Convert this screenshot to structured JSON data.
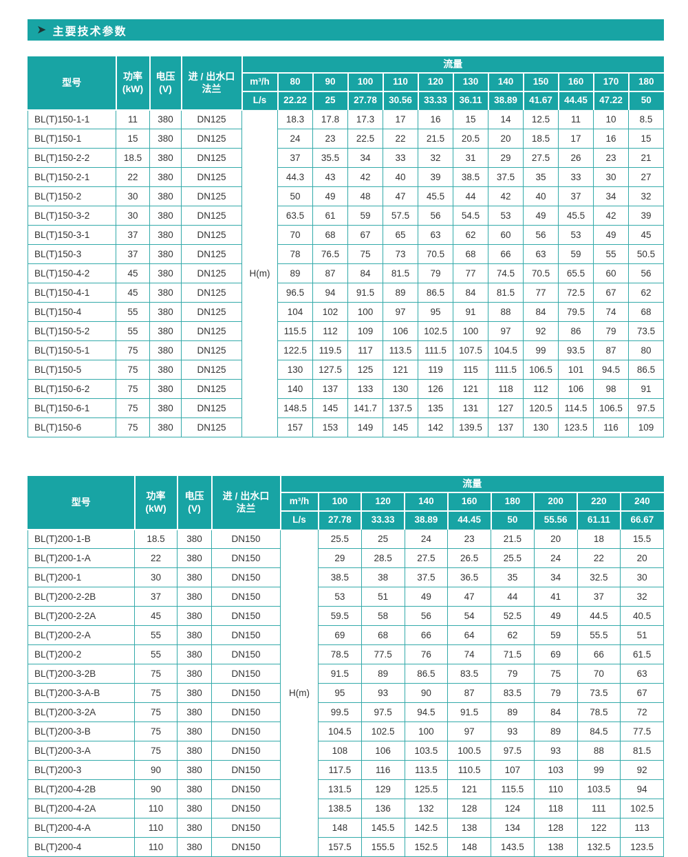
{
  "page": {
    "title": "主要技术参数",
    "arrow_icon": "➤"
  },
  "table1": {
    "headers": {
      "model": "型号",
      "power": "功率\n(kW)",
      "voltage": "电压\n(V)",
      "flange": "进 / 出水口\n法兰",
      "flow": "流量",
      "m3h": "m³/h",
      "ls": "L/s",
      "head": "H(m)"
    },
    "m3h_values": [
      "80",
      "90",
      "100",
      "110",
      "120",
      "130",
      "140",
      "150",
      "160",
      "170",
      "180"
    ],
    "ls_values": [
      "22.22",
      "25",
      "27.78",
      "30.56",
      "33.33",
      "36.11",
      "38.89",
      "41.67",
      "44.45",
      "47.22",
      "50"
    ],
    "rows": [
      {
        "model": "BL(T)150-1-1",
        "power": "11",
        "voltage": "380",
        "flange": "DN125",
        "values": [
          "18.3",
          "17.8",
          "17.3",
          "17",
          "16",
          "15",
          "14",
          "12.5",
          "11",
          "10",
          "8.5"
        ]
      },
      {
        "model": "BL(T)150-1",
        "power": "15",
        "voltage": "380",
        "flange": "DN125",
        "values": [
          "24",
          "23",
          "22.5",
          "22",
          "21.5",
          "20.5",
          "20",
          "18.5",
          "17",
          "16",
          "15"
        ]
      },
      {
        "model": "BL(T)150-2-2",
        "power": "18.5",
        "voltage": "380",
        "flange": "DN125",
        "values": [
          "37",
          "35.5",
          "34",
          "33",
          "32",
          "31",
          "29",
          "27.5",
          "26",
          "23",
          "21"
        ]
      },
      {
        "model": "BL(T)150-2-1",
        "power": "22",
        "voltage": "380",
        "flange": "DN125",
        "values": [
          "44.3",
          "43",
          "42",
          "40",
          "39",
          "38.5",
          "37.5",
          "35",
          "33",
          "30",
          "27"
        ]
      },
      {
        "model": "BL(T)150-2",
        "power": "30",
        "voltage": "380",
        "flange": "DN125",
        "values": [
          "50",
          "49",
          "48",
          "47",
          "45.5",
          "44",
          "42",
          "40",
          "37",
          "34",
          "32"
        ]
      },
      {
        "model": "BL(T)150-3-2",
        "power": "30",
        "voltage": "380",
        "flange": "DN125",
        "values": [
          "63.5",
          "61",
          "59",
          "57.5",
          "56",
          "54.5",
          "53",
          "49",
          "45.5",
          "42",
          "39"
        ]
      },
      {
        "model": "BL(T)150-3-1",
        "power": "37",
        "voltage": "380",
        "flange": "DN125",
        "values": [
          "70",
          "68",
          "67",
          "65",
          "63",
          "62",
          "60",
          "56",
          "53",
          "49",
          "45"
        ]
      },
      {
        "model": "BL(T)150-3",
        "power": "37",
        "voltage": "380",
        "flange": "DN125",
        "values": [
          "78",
          "76.5",
          "75",
          "73",
          "70.5",
          "68",
          "66",
          "63",
          "59",
          "55",
          "50.5"
        ]
      },
      {
        "model": "BL(T)150-4-2",
        "power": "45",
        "voltage": "380",
        "flange": "DN125",
        "values": [
          "89",
          "87",
          "84",
          "81.5",
          "79",
          "77",
          "74.5",
          "70.5",
          "65.5",
          "60",
          "56"
        ]
      },
      {
        "model": "BL(T)150-4-1",
        "power": "45",
        "voltage": "380",
        "flange": "DN125",
        "values": [
          "96.5",
          "94",
          "91.5",
          "89",
          "86.5",
          "84",
          "81.5",
          "77",
          "72.5",
          "67",
          "62"
        ]
      },
      {
        "model": "BL(T)150-4",
        "power": "55",
        "voltage": "380",
        "flange": "DN125",
        "values": [
          "104",
          "102",
          "100",
          "97",
          "95",
          "91",
          "88",
          "84",
          "79.5",
          "74",
          "68"
        ]
      },
      {
        "model": "BL(T)150-5-2",
        "power": "55",
        "voltage": "380",
        "flange": "DN125",
        "values": [
          "115.5",
          "112",
          "109",
          "106",
          "102.5",
          "100",
          "97",
          "92",
          "86",
          "79",
          "73.5"
        ]
      },
      {
        "model": "BL(T)150-5-1",
        "power": "75",
        "voltage": "380",
        "flange": "DN125",
        "values": [
          "122.5",
          "119.5",
          "117",
          "113.5",
          "111.5",
          "107.5",
          "104.5",
          "99",
          "93.5",
          "87",
          "80"
        ]
      },
      {
        "model": "BL(T)150-5",
        "power": "75",
        "voltage": "380",
        "flange": "DN125",
        "values": [
          "130",
          "127.5",
          "125",
          "121",
          "119",
          "115",
          "111.5",
          "106.5",
          "101",
          "94.5",
          "86.5"
        ]
      },
      {
        "model": "BL(T)150-6-2",
        "power": "75",
        "voltage": "380",
        "flange": "DN125",
        "values": [
          "140",
          "137",
          "133",
          "130",
          "126",
          "121",
          "118",
          "112",
          "106",
          "98",
          "91"
        ]
      },
      {
        "model": "BL(T)150-6-1",
        "power": "75",
        "voltage": "380",
        "flange": "DN125",
        "values": [
          "148.5",
          "145",
          "141.7",
          "137.5",
          "135",
          "131",
          "127",
          "120.5",
          "114.5",
          "106.5",
          "97.5"
        ]
      },
      {
        "model": "BL(T)150-6",
        "power": "75",
        "voltage": "380",
        "flange": "DN125",
        "values": [
          "157",
          "153",
          "149",
          "145",
          "142",
          "139.5",
          "137",
          "130",
          "123.5",
          "116",
          "109"
        ]
      }
    ]
  },
  "table2": {
    "headers": {
      "model": "型号",
      "power": "功率\n(kW)",
      "voltage": "电压\n(V)",
      "flange": "进 / 出水口\n法兰",
      "flow": "流量",
      "m3h": "m³/h",
      "ls": "L/s",
      "head": "H(m)"
    },
    "m3h_values": [
      "100",
      "120",
      "140",
      "160",
      "180",
      "200",
      "220",
      "240"
    ],
    "ls_values": [
      "27.78",
      "33.33",
      "38.89",
      "44.45",
      "50",
      "55.56",
      "61.11",
      "66.67"
    ],
    "rows": [
      {
        "model": "BL(T)200-1-B",
        "power": "18.5",
        "voltage": "380",
        "flange": "DN150",
        "values": [
          "25.5",
          "25",
          "24",
          "23",
          "21.5",
          "20",
          "18",
          "15.5"
        ]
      },
      {
        "model": "BL(T)200-1-A",
        "power": "22",
        "voltage": "380",
        "flange": "DN150",
        "values": [
          "29",
          "28.5",
          "27.5",
          "26.5",
          "25.5",
          "24",
          "22",
          "20"
        ]
      },
      {
        "model": "BL(T)200-1",
        "power": "30",
        "voltage": "380",
        "flange": "DN150",
        "values": [
          "38.5",
          "38",
          "37.5",
          "36.5",
          "35",
          "34",
          "32.5",
          "30"
        ]
      },
      {
        "model": "BL(T)200-2-2B",
        "power": "37",
        "voltage": "380",
        "flange": "DN150",
        "values": [
          "53",
          "51",
          "49",
          "47",
          "44",
          "41",
          "37",
          "32"
        ]
      },
      {
        "model": "BL(T)200-2-2A",
        "power": "45",
        "voltage": "380",
        "flange": "DN150",
        "values": [
          "59.5",
          "58",
          "56",
          "54",
          "52.5",
          "49",
          "44.5",
          "40.5"
        ]
      },
      {
        "model": "BL(T)200-2-A",
        "power": "55",
        "voltage": "380",
        "flange": "DN150",
        "values": [
          "69",
          "68",
          "66",
          "64",
          "62",
          "59",
          "55.5",
          "51"
        ]
      },
      {
        "model": "BL(T)200-2",
        "power": "55",
        "voltage": "380",
        "flange": "DN150",
        "values": [
          "78.5",
          "77.5",
          "76",
          "74",
          "71.5",
          "69",
          "66",
          "61.5"
        ]
      },
      {
        "model": "BL(T)200-3-2B",
        "power": "75",
        "voltage": "380",
        "flange": "DN150",
        "values": [
          "91.5",
          "89",
          "86.5",
          "83.5",
          "79",
          "75",
          "70",
          "63"
        ]
      },
      {
        "model": "BL(T)200-3-A-B",
        "power": "75",
        "voltage": "380",
        "flange": "DN150",
        "values": [
          "95",
          "93",
          "90",
          "87",
          "83.5",
          "79",
          "73.5",
          "67"
        ]
      },
      {
        "model": "BL(T)200-3-2A",
        "power": "75",
        "voltage": "380",
        "flange": "DN150",
        "values": [
          "99.5",
          "97.5",
          "94.5",
          "91.5",
          "89",
          "84",
          "78.5",
          "72"
        ]
      },
      {
        "model": "BL(T)200-3-B",
        "power": "75",
        "voltage": "380",
        "flange": "DN150",
        "values": [
          "104.5",
          "102.5",
          "100",
          "97",
          "93",
          "89",
          "84.5",
          "77.5"
        ]
      },
      {
        "model": "BL(T)200-3-A",
        "power": "75",
        "voltage": "380",
        "flange": "DN150",
        "values": [
          "108",
          "106",
          "103.5",
          "100.5",
          "97.5",
          "93",
          "88",
          "81.5"
        ]
      },
      {
        "model": "BL(T)200-3",
        "power": "90",
        "voltage": "380",
        "flange": "DN150",
        "values": [
          "117.5",
          "116",
          "113.5",
          "110.5",
          "107",
          "103",
          "99",
          "92"
        ]
      },
      {
        "model": "BL(T)200-4-2B",
        "power": "90",
        "voltage": "380",
        "flange": "DN150",
        "values": [
          "131.5",
          "129",
          "125.5",
          "121",
          "115.5",
          "110",
          "103.5",
          "94"
        ]
      },
      {
        "model": "BL(T)200-4-2A",
        "power": "110",
        "voltage": "380",
        "flange": "DN150",
        "values": [
          "138.5",
          "136",
          "132",
          "128",
          "124",
          "118",
          "111",
          "102.5"
        ]
      },
      {
        "model": "BL(T)200-4-A",
        "power": "110",
        "voltage": "380",
        "flange": "DN150",
        "values": [
          "148",
          "145.5",
          "142.5",
          "138",
          "134",
          "128",
          "122",
          "113"
        ]
      },
      {
        "model": "BL(T)200-4",
        "power": "110",
        "voltage": "380",
        "flange": "DN150",
        "values": [
          "157.5",
          "155.5",
          "152.5",
          "148",
          "143.5",
          "138",
          "132.5",
          "123.5"
        ]
      }
    ]
  }
}
